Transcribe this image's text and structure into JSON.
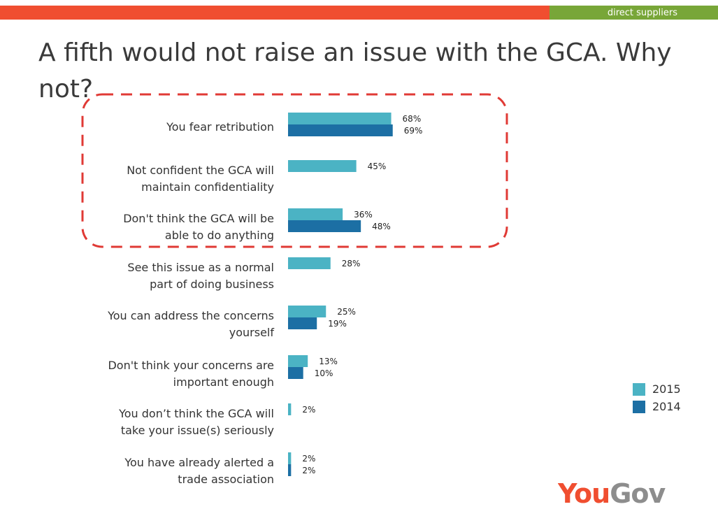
{
  "header": {
    "section_label": "direct suppliers",
    "accent_red": "#f04e30",
    "accent_green": "#78a638"
  },
  "slide": {
    "title": "A fifth would not raise an issue with the GCA. Why not?"
  },
  "chart_data": {
    "type": "bar",
    "orientation": "horizontal",
    "categories": [
      [
        "You fear retribution"
      ],
      [
        "Not confident the GCA will",
        "maintain confidentiality"
      ],
      [
        "Don't think the GCA will be",
        "able to do anything"
      ],
      [
        "See this issue as a normal",
        "part of doing business"
      ],
      [
        "You can address the concerns",
        "yourself"
      ],
      [
        "Don't think your concerns are",
        "important enough"
      ],
      [
        "You don’t think the GCA will",
        "take your issue(s) seriously"
      ],
      [
        "You have already alerted a",
        "trade association"
      ]
    ],
    "series": [
      {
        "name": "2015",
        "color": "#4bb3c4",
        "values": [
          68,
          45,
          36,
          28,
          25,
          13,
          2,
          2
        ]
      },
      {
        "name": "2014",
        "color": "#1c6fa4",
        "values": [
          69,
          null,
          48,
          null,
          19,
          10,
          null,
          2
        ]
      }
    ],
    "value_suffix": "%",
    "xlim": [
      0,
      100
    ],
    "grid": false,
    "legend_placement": "right",
    "highlight": {
      "style": "dashed",
      "color": "#e03a35",
      "categories": [
        0,
        1,
        2
      ]
    }
  },
  "legend": {
    "items": [
      {
        "label": "2015",
        "color": "#4bb3c4"
      },
      {
        "label": "2014",
        "color": "#1c6fa4"
      }
    ]
  },
  "logo": {
    "part_1": "You",
    "part_2": "Gov"
  }
}
